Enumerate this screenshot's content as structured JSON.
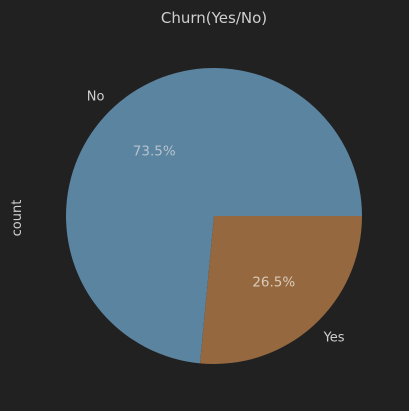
{
  "chart_data": {
    "type": "pie",
    "title": "Churn(Yes/No)",
    "ylabel": "count",
    "categories": [
      "No",
      "Yes"
    ],
    "values": [
      73.5,
      26.5
    ],
    "percent_labels": [
      "73.5%",
      "26.5%"
    ],
    "colors": [
      "#5b84a1",
      "#95683f"
    ],
    "label_color": "#cfcfcf",
    "percent_label_colors": [
      "#b5c2cd",
      "#d9cbb8"
    ],
    "background": "#212121"
  }
}
